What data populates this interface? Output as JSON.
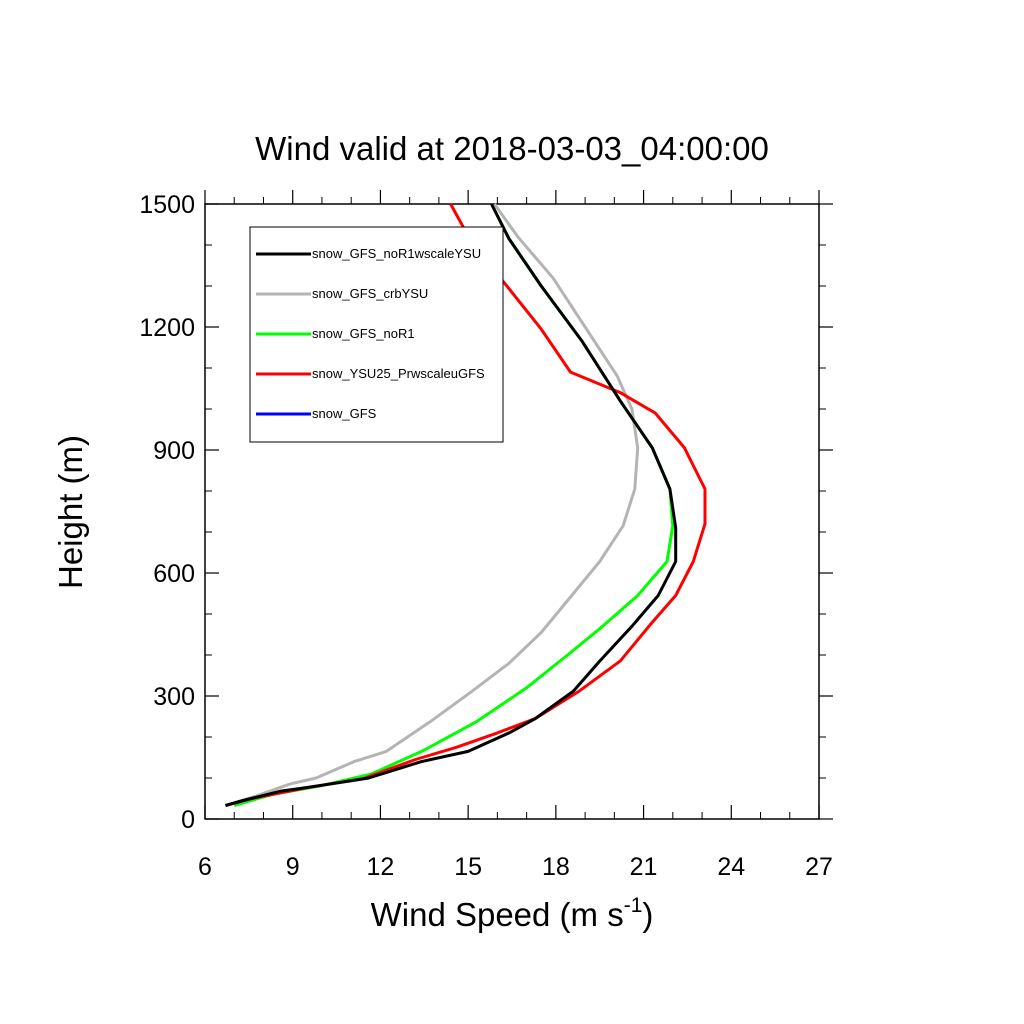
{
  "chart_data": {
    "type": "line",
    "title": "Wind valid at 2018-03-03_04:00:00",
    "xlabel": "Wind Speed (m s",
    "xlabel_superscript": "-1",
    "xlabel_suffix": ")",
    "ylabel": "Height (m)",
    "xlim": [
      6,
      27
    ],
    "ylim": [
      0,
      1500
    ],
    "xticks": [
      6,
      9,
      12,
      15,
      18,
      21,
      24,
      27
    ],
    "yticks": [
      0,
      300,
      600,
      900,
      1200,
      1500
    ],
    "xtick_labels": [
      "6",
      "9",
      "12",
      "15",
      "18",
      "21",
      "24",
      "27"
    ],
    "ytick_labels": [
      "0",
      "300",
      "600",
      "900",
      "1200",
      "1500"
    ],
    "legend_position": "top-left",
    "grid": false,
    "series": [
      {
        "name": "snow_GFS_noR1wscaleYSU",
        "color": "#000000",
        "points": [
          [
            6.7,
            33
          ],
          [
            7.3,
            45
          ],
          [
            8.6,
            68
          ],
          [
            9.8,
            80
          ],
          [
            11.6,
            100
          ],
          [
            13.4,
            140
          ],
          [
            15.0,
            165
          ],
          [
            16.4,
            210
          ],
          [
            17.3,
            245
          ],
          [
            18.6,
            312
          ],
          [
            19.5,
            385
          ],
          [
            20.6,
            470
          ],
          [
            21.5,
            545
          ],
          [
            22.1,
            628
          ],
          [
            22.1,
            710
          ],
          [
            21.9,
            805
          ],
          [
            21.3,
            905
          ],
          [
            20.2,
            1020
          ],
          [
            18.9,
            1165
          ],
          [
            17.5,
            1300
          ],
          [
            16.4,
            1415
          ],
          [
            15.8,
            1500
          ]
        ]
      },
      {
        "name": "snow_GFS_crbYSU",
        "color": "#b4b4b4",
        "points": [
          [
            6.7,
            33
          ],
          [
            7.7,
            55
          ],
          [
            8.9,
            85
          ],
          [
            9.8,
            100
          ],
          [
            11.1,
            140
          ],
          [
            12.2,
            165
          ],
          [
            13.7,
            237
          ],
          [
            15.1,
            310
          ],
          [
            16.4,
            380
          ],
          [
            17.5,
            455
          ],
          [
            18.6,
            550
          ],
          [
            19.5,
            628
          ],
          [
            20.3,
            715
          ],
          [
            20.7,
            805
          ],
          [
            20.8,
            905
          ],
          [
            20.6,
            1000
          ],
          [
            20.1,
            1080
          ],
          [
            19.0,
            1200
          ],
          [
            17.9,
            1320
          ],
          [
            16.7,
            1420
          ],
          [
            15.9,
            1500
          ]
        ]
      },
      {
        "name": "snow_GFS_noR1",
        "color": "#00ff00",
        "points": [
          [
            7.0,
            33
          ],
          [
            8.3,
            60
          ],
          [
            9.9,
            80
          ],
          [
            11.7,
            110
          ],
          [
            13.5,
            168
          ],
          [
            15.3,
            238
          ],
          [
            17.0,
            320
          ],
          [
            18.4,
            400
          ],
          [
            19.6,
            470
          ],
          [
            20.8,
            545
          ],
          [
            21.8,
            628
          ],
          [
            22.0,
            715
          ],
          [
            21.9,
            805
          ],
          [
            21.3,
            905
          ],
          [
            20.2,
            1020
          ],
          [
            18.9,
            1165
          ],
          [
            17.5,
            1300
          ],
          [
            16.4,
            1415
          ],
          [
            15.8,
            1500
          ]
        ]
      },
      {
        "name": "snow_YSU25_PrwscaleuGFS",
        "color": "#ff0000",
        "points": [
          [
            6.7,
            33
          ],
          [
            7.6,
            50
          ],
          [
            9.6,
            78
          ],
          [
            11.4,
            98
          ],
          [
            13.2,
            145
          ],
          [
            14.6,
            175
          ],
          [
            16.0,
            210
          ],
          [
            17.3,
            245
          ],
          [
            18.8,
            312
          ],
          [
            20.2,
            385
          ],
          [
            21.3,
            480
          ],
          [
            22.1,
            545
          ],
          [
            22.7,
            628
          ],
          [
            23.1,
            720
          ],
          [
            23.1,
            805
          ],
          [
            22.4,
            905
          ],
          [
            21.4,
            990
          ],
          [
            20.2,
            1040
          ],
          [
            18.5,
            1090
          ],
          [
            17.5,
            1195
          ],
          [
            16.1,
            1320
          ],
          [
            14.9,
            1435
          ],
          [
            14.4,
            1500
          ]
        ]
      },
      {
        "name": "snow_GFS",
        "color": "#0000ff",
        "points": [
          [
            6.7,
            33
          ],
          [
            7.7,
            55
          ],
          [
            8.9,
            85
          ],
          [
            9.8,
            100
          ],
          [
            11.1,
            140
          ],
          [
            12.2,
            165
          ],
          [
            13.7,
            237
          ],
          [
            15.1,
            310
          ],
          [
            16.4,
            380
          ],
          [
            17.5,
            455
          ],
          [
            18.6,
            550
          ],
          [
            19.5,
            628
          ],
          [
            20.3,
            715
          ],
          [
            20.7,
            805
          ],
          [
            20.8,
            905
          ],
          [
            20.6,
            1000
          ],
          [
            20.1,
            1080
          ],
          [
            19.0,
            1200
          ],
          [
            17.9,
            1320
          ],
          [
            16.7,
            1420
          ],
          [
            15.9,
            1500
          ]
        ]
      }
    ]
  }
}
